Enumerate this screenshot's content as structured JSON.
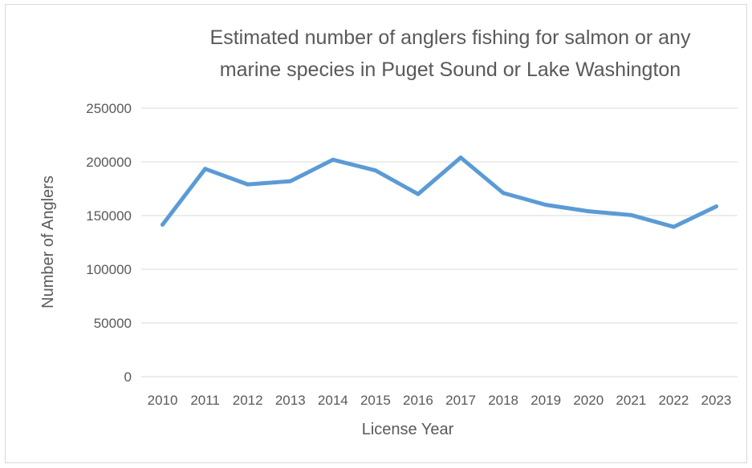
{
  "chart_data": {
    "type": "line",
    "title_lines": [
      "Estimated number of anglers fishing for salmon or any",
      "marine species in Puget Sound or Lake Washington"
    ],
    "xlabel": "License Year",
    "ylabel": "Number of Anglers",
    "ylim": [
      0,
      250000
    ],
    "yticks": [
      0,
      50000,
      100000,
      150000,
      200000,
      250000
    ],
    "grid": true,
    "legend": "none",
    "categories": [
      "2010",
      "2011",
      "2012",
      "2013",
      "2014",
      "2015",
      "2016",
      "2017",
      "2018",
      "2019",
      "2020",
      "2021",
      "2022",
      "2023"
    ],
    "series": [
      {
        "values": [
          141500,
          193500,
          179000,
          182000,
          202000,
          192000,
          170000,
          204000,
          171000,
          160000,
          154000,
          150500,
          139500,
          158500
        ],
        "color": "#5b9bd5"
      }
    ]
  }
}
